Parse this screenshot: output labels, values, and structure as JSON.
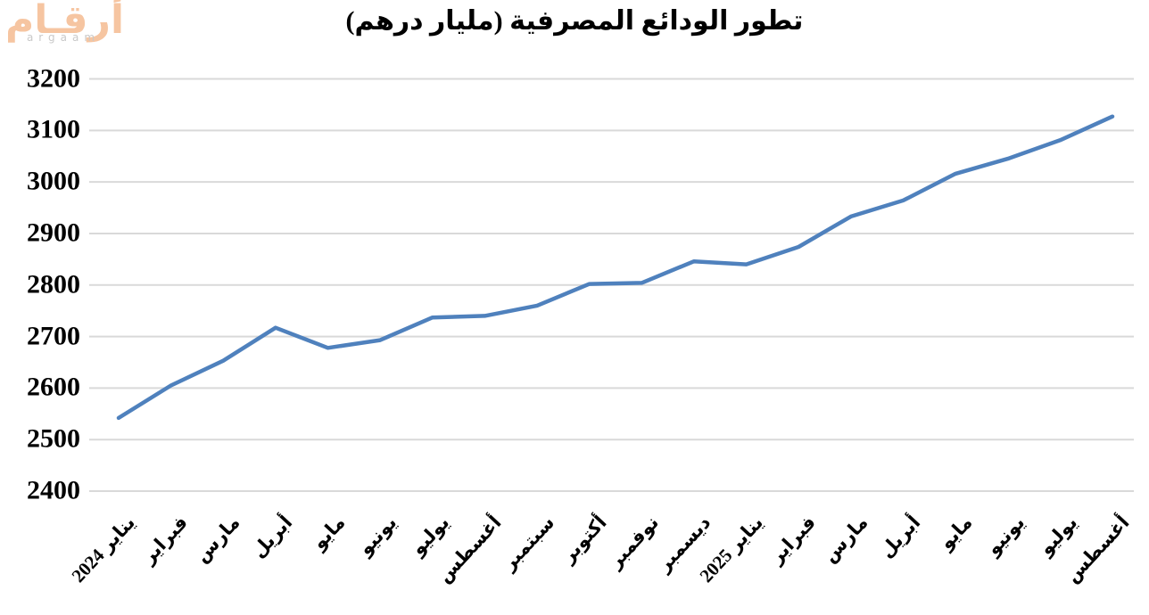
{
  "logo": {
    "arabic": "أرقـام",
    "latin": "argaam"
  },
  "chart_data": {
    "type": "line",
    "title": "تطور الودائع المصرفية (مليار درهم)",
    "xlabel": "",
    "ylabel": "",
    "categories": [
      "يناير 2024",
      "فبراير",
      "مارس",
      "أبريل",
      "مايو",
      "يونيو",
      "يوليو",
      "أغسطس",
      "سبتمبر",
      "أكتوبر",
      "نوفمبر",
      "ديسمبر",
      "يناير 2025",
      "فبراير",
      "مارس",
      "أبريل",
      "مايو",
      "يونيو",
      "يوليو",
      "أغسطس"
    ],
    "values": [
      2542,
      2605,
      2653,
      2717,
      2678,
      2693,
      2737,
      2740,
      2760,
      2802,
      2804,
      2846,
      2840,
      2874,
      2933,
      2964,
      3016,
      3045,
      3081,
      3127
    ],
    "ylim": [
      2400,
      3200
    ],
    "ytick_step": 100,
    "yticks": [
      2400,
      2500,
      2600,
      2700,
      2800,
      2900,
      3000,
      3100,
      3200
    ],
    "grid": true,
    "legend": false,
    "line_color": "#4F81BD",
    "grid_color": "#D9D9D9",
    "text_color": "#000000",
    "logo_color": "#F6C5A1"
  }
}
